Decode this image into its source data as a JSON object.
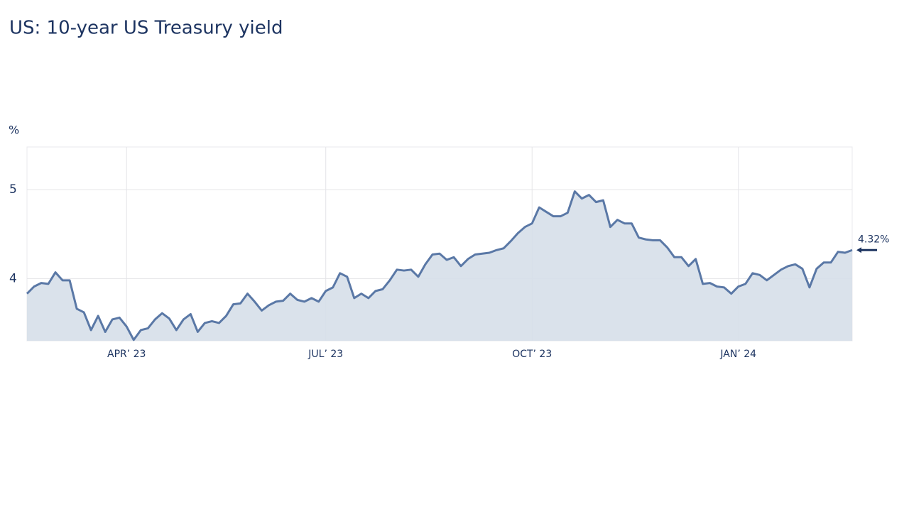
{
  "chart_data": {
    "type": "area",
    "title": "US: 10-year US Treasury yield",
    "y_label": "%",
    "annotation": "4.32%",
    "line_color": "#5a78a6",
    "fill_color": "#d6dfe9",
    "grid": true,
    "ylim": [
      3.3,
      5.48
    ],
    "yticks": [
      4,
      5
    ],
    "categories": [
      null,
      null,
      null,
      null,
      null,
      null,
      null,
      null,
      null,
      null,
      null,
      null,
      null,
      null,
      "APR’ 23",
      null,
      null,
      null,
      null,
      null,
      null,
      null,
      null,
      null,
      null,
      null,
      null,
      null,
      null,
      null,
      null,
      null,
      null,
      null,
      null,
      null,
      null,
      null,
      null,
      null,
      null,
      null,
      "JUL’ 23",
      null,
      null,
      null,
      null,
      null,
      null,
      null,
      null,
      null,
      null,
      null,
      null,
      null,
      null,
      null,
      null,
      null,
      null,
      null,
      null,
      null,
      null,
      null,
      null,
      null,
      null,
      null,
      null,
      "OCT’ 23",
      null,
      null,
      null,
      null,
      null,
      null,
      null,
      null,
      null,
      null,
      null,
      null,
      null,
      null,
      null,
      null,
      null,
      null,
      null,
      null,
      null,
      null,
      null,
      null,
      null,
      null,
      null,
      null,
      "JAN’ 24",
      null,
      null,
      null,
      null,
      null,
      null,
      null,
      null,
      null,
      null,
      null,
      null,
      null,
      null,
      null,
      null
    ],
    "values": [
      3.83,
      3.91,
      3.95,
      3.94,
      4.07,
      3.98,
      3.98,
      3.66,
      3.62,
      3.42,
      3.58,
      3.4,
      3.54,
      3.56,
      3.46,
      3.31,
      3.42,
      3.44,
      3.54,
      3.61,
      3.55,
      3.42,
      3.54,
      3.6,
      3.4,
      3.5,
      3.52,
      3.5,
      3.58,
      3.71,
      3.72,
      3.83,
      3.74,
      3.64,
      3.7,
      3.74,
      3.75,
      3.83,
      3.76,
      3.74,
      3.78,
      3.74,
      3.86,
      3.9,
      4.06,
      4.02,
      3.78,
      3.83,
      3.78,
      3.86,
      3.88,
      3.98,
      4.1,
      4.09,
      4.1,
      4.02,
      4.16,
      4.27,
      4.28,
      4.21,
      4.24,
      4.14,
      4.22,
      4.27,
      4.28,
      4.29,
      4.32,
      4.34,
      4.42,
      4.51,
      4.58,
      4.62,
      4.8,
      4.75,
      4.7,
      4.7,
      4.74,
      4.98,
      4.9,
      4.94,
      4.86,
      4.88,
      4.58,
      4.66,
      4.62,
      4.62,
      4.46,
      4.44,
      4.43,
      4.43,
      4.35,
      4.24,
      4.24,
      4.14,
      4.22,
      3.94,
      3.95,
      3.91,
      3.9,
      3.83,
      3.91,
      3.94,
      4.06,
      4.04,
      3.98,
      4.04,
      4.1,
      4.14,
      4.16,
      4.11,
      3.9,
      4.11,
      4.18,
      4.18,
      4.3,
      4.29,
      4.32
    ]
  }
}
